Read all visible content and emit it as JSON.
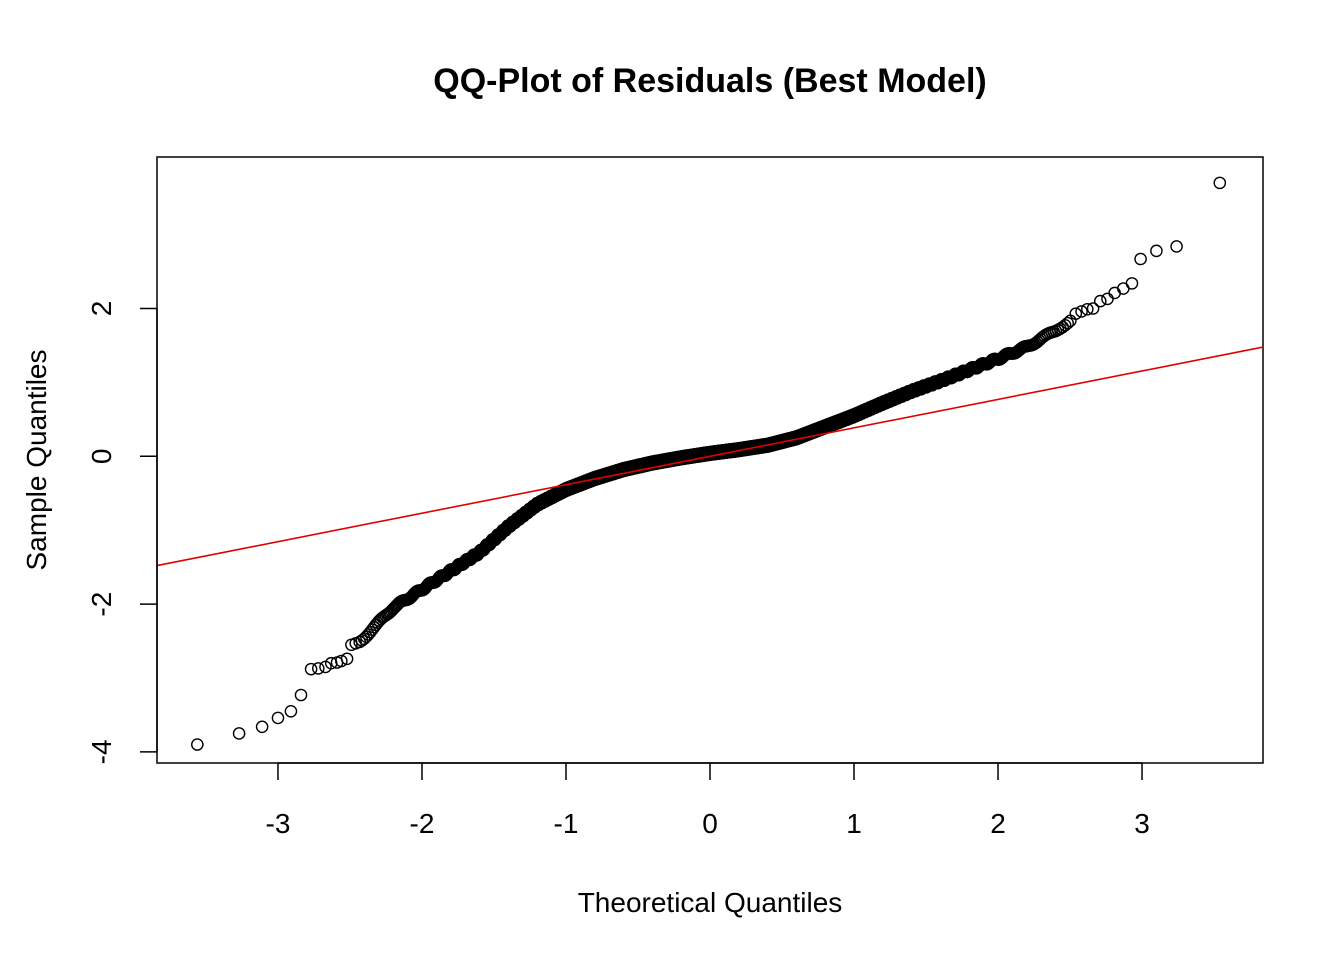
{
  "chart_data": {
    "type": "scatter",
    "title": "QQ-Plot of Residuals (Best Model)",
    "xlabel": "Theoretical Quantiles",
    "ylabel": "Sample Quantiles",
    "xlim": [
      -3.84,
      3.84
    ],
    "ylim": [
      -4.15,
      4.05
    ],
    "x_ticks": [
      -3,
      -2,
      -1,
      0,
      1,
      2,
      3
    ],
    "y_ticks": [
      -4,
      -2,
      0,
      2
    ],
    "point_color": "#000000",
    "line_color": "#e00000",
    "grid": false,
    "legend": "none",
    "n_points": 3000,
    "reference_line": {
      "slope": 0.385,
      "intercept": 0.0
    },
    "quantile_curve": [
      [
        -2.6,
        -2.8
      ],
      [
        -2.4,
        -2.45
      ],
      [
        -2.2,
        -2.05
      ],
      [
        -2.0,
        -1.8
      ],
      [
        -1.8,
        -1.55
      ],
      [
        -1.6,
        -1.3
      ],
      [
        -1.4,
        -0.95
      ],
      [
        -1.2,
        -0.65
      ],
      [
        -1.0,
        -0.45
      ],
      [
        -0.8,
        -0.3
      ],
      [
        -0.6,
        -0.18
      ],
      [
        -0.4,
        -0.09
      ],
      [
        -0.2,
        -0.02
      ],
      [
        0.0,
        0.04
      ],
      [
        0.2,
        0.09
      ],
      [
        0.4,
        0.15
      ],
      [
        0.6,
        0.25
      ],
      [
        0.8,
        0.4
      ],
      [
        1.0,
        0.55
      ],
      [
        1.2,
        0.72
      ],
      [
        1.4,
        0.88
      ],
      [
        1.6,
        1.02
      ],
      [
        1.8,
        1.17
      ],
      [
        2.0,
        1.32
      ],
      [
        2.2,
        1.48
      ],
      [
        2.4,
        1.7
      ],
      [
        2.6,
        1.97
      ]
    ],
    "tail_points": [
      {
        "x": -3.56,
        "y": -3.9
      },
      {
        "x": -3.27,
        "y": -3.75
      },
      {
        "x": -3.11,
        "y": -3.66
      },
      {
        "x": -3.0,
        "y": -3.54
      },
      {
        "x": -2.91,
        "y": -3.45
      },
      {
        "x": -2.84,
        "y": -3.23
      },
      {
        "x": -2.77,
        "y": -2.88
      },
      {
        "x": -2.72,
        "y": -2.87
      },
      {
        "x": -2.67,
        "y": -2.85
      },
      {
        "x": -2.63,
        "y": -2.8
      },
      {
        "x": -2.59,
        "y": -2.79
      },
      {
        "x": -2.56,
        "y": -2.77
      },
      {
        "x": -2.52,
        "y": -2.74
      },
      {
        "x": -2.49,
        "y": -2.55
      },
      {
        "x": -2.46,
        "y": -2.53
      },
      {
        "x": 2.54,
        "y": 1.93
      },
      {
        "x": 2.58,
        "y": 1.96
      },
      {
        "x": 2.62,
        "y": 1.99
      },
      {
        "x": 2.66,
        "y": 2.0
      },
      {
        "x": 2.71,
        "y": 2.1
      },
      {
        "x": 2.76,
        "y": 2.13
      },
      {
        "x": 2.81,
        "y": 2.21
      },
      {
        "x": 2.87,
        "y": 2.27
      },
      {
        "x": 2.93,
        "y": 2.34
      },
      {
        "x": 2.99,
        "y": 2.67
      },
      {
        "x": 3.1,
        "y": 2.78
      },
      {
        "x": 3.24,
        "y": 2.84
      },
      {
        "x": 3.54,
        "y": 3.7
      }
    ]
  }
}
